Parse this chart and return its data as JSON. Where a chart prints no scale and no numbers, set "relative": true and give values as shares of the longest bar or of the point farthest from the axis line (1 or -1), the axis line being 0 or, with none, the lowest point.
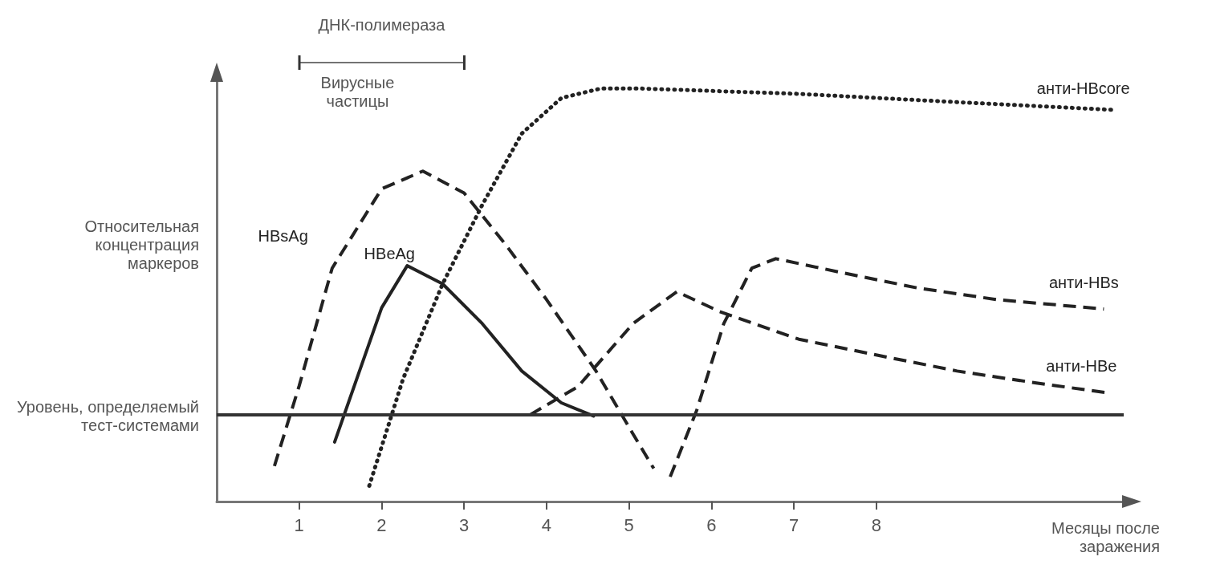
{
  "chart_data": {
    "type": "line",
    "relative": true,
    "xlabel": "Месяцы после заражения",
    "ylabel": "Относительная концентрация маркеров",
    "xlim": [
      0,
      11
    ],
    "xticks": [
      1,
      2,
      3,
      4,
      5,
      6,
      7,
      8
    ],
    "marker": "none",
    "series": [
      {
        "name": "HBsAg",
        "color": "#222222",
        "line_style": "dashed",
        "x": [
          0.7,
          1.0,
          1.4,
          2.0,
          2.5,
          3.0,
          3.5,
          4.0,
          4.6,
          5.05,
          5.3
        ],
        "values": [
          0.086,
          0.28,
          0.565,
          0.757,
          0.8,
          0.747,
          0.623,
          0.489,
          0.316,
          0.163,
          0.08
        ]
      },
      {
        "name": "HBeAg",
        "color": "#222222",
        "line_style": "solid",
        "x": [
          1.43,
          2.0,
          2.31,
          2.74,
          3.22,
          3.7,
          4.18,
          4.57
        ],
        "values": [
          0.144,
          0.469,
          0.571,
          0.527,
          0.431,
          0.316,
          0.239,
          0.207
        ]
      },
      {
        "name": "анти-HBcore",
        "color": "#222222",
        "line_style": "dotted",
        "x": [
          1.85,
          2.26,
          2.74,
          3.22,
          3.7,
          4.18,
          4.66,
          5.14,
          7.06,
          8.98,
          10.9
        ],
        "values": [
          0.038,
          0.297,
          0.527,
          0.718,
          0.891,
          0.977,
          1,
          1,
          0.987,
          0.967,
          0.948
        ]
      },
      {
        "name": "анти-HBs",
        "color": "#222222",
        "line_style": "dashed",
        "x": [
          5.5,
          5.82,
          6.15,
          6.49,
          6.78,
          7.54,
          8.5,
          9.46,
          10.76
        ],
        "values": [
          0.06,
          0.22,
          0.431,
          0.565,
          0.588,
          0.556,
          0.517,
          0.489,
          0.466
        ]
      },
      {
        "name": "анти-HBe",
        "color": "#222222",
        "line_style": "dashed",
        "x": [
          3.8,
          4.38,
          5.05,
          5.58,
          6.1,
          7.06,
          8.02,
          8.98,
          9.94,
          10.78
        ],
        "values": [
          0.21,
          0.278,
          0.431,
          0.508,
          0.46,
          0.393,
          0.354,
          0.316,
          0.287,
          0.264
        ]
      }
    ],
    "ref_lines": [
      {
        "axis": "y",
        "value": 0.207,
        "label": "Уровень, определяемый тест-системами",
        "color": "#333333"
      }
    ],
    "annotations": [
      "ДНК-полимераза",
      "Вирусные частицы"
    ]
  }
}
